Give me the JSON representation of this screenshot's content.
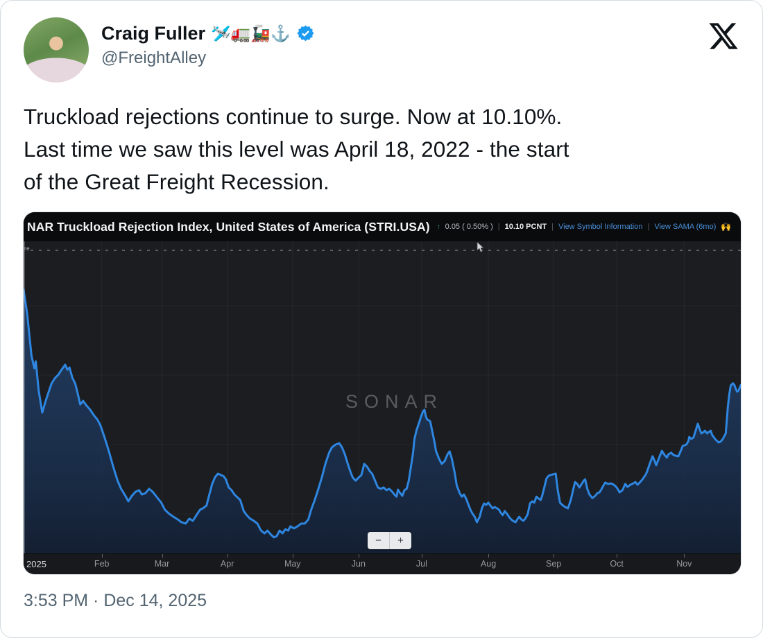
{
  "tweet": {
    "author": {
      "name": "Craig Fuller",
      "emojis": "🛩️🚛🚂⚓",
      "handle": "@FreightAlley"
    },
    "body": "Truckload rejections continue to surge. Now at 10.10%.\nLast time we saw this level was April 18, 2022 - the start\nof the Great Freight Recession.",
    "timestamp": "3:53 PM · Dec 14, 2025"
  },
  "chart": {
    "title": "NAR Truckload Rejection Index, United States of America (STRI.USA)",
    "up_arrow": "↑",
    "change": "0.05 ( 0.50% )",
    "value": "10.10 PCNT",
    "separator": "|",
    "link_symbol_info": "View Symbol Information",
    "link_sama": "View SAMA (6mo)",
    "link_sama_emoji": "🙌",
    "watermark": "SONAR",
    "marker_label": "re",
    "zoom_out": "−",
    "zoom_in": "+",
    "year_label": "2025"
  },
  "colors": {
    "line": "#2e86e0",
    "area_top": "#27528c",
    "area_bottom": "#131f33",
    "link": "#4a90d9",
    "green": "#2ea866",
    "verified": "#1d9bf0",
    "chart_bg": "#1b1d20",
    "titlebar_bg": "#0a0b0d"
  },
  "chart_data": {
    "type": "area",
    "title": "SONAR Truckload Rejection Index, United States of America (STRI.USA)",
    "ylabel": "PCNT",
    "latest_value": 10.1,
    "change_abs": 0.05,
    "change_pct": "0.50%",
    "x_range": "Jan 2025 - mid Dec 2025 (daily, t = fraction of span)",
    "value_range": [
      3.9,
      15.4
    ],
    "marker_value": 15.07,
    "legend": "none",
    "grid": "faint",
    "months": [
      {
        "label": "Feb",
        "t": 0.109
      },
      {
        "label": "Mar",
        "t": 0.193
      },
      {
        "label": "Apr",
        "t": 0.284
      },
      {
        "label": "May",
        "t": 0.375
      },
      {
        "label": "Jun",
        "t": 0.467
      },
      {
        "label": "Jul",
        "t": 0.555
      },
      {
        "label": "Aug",
        "t": 0.648
      },
      {
        "label": "Sep",
        "t": 0.739
      },
      {
        "label": "Oct",
        "t": 0.827
      },
      {
        "label": "Nov",
        "t": 0.921
      }
    ],
    "points": [
      [
        0,
        13.61
      ],
      [
        0.005,
        12.72
      ],
      [
        0.011,
        11.18
      ],
      [
        0.015,
        10.72
      ],
      [
        0.017,
        10.98
      ],
      [
        0.021,
        9.91
      ],
      [
        0.026,
        9.09
      ],
      [
        0.03,
        9.45
      ],
      [
        0.034,
        9.78
      ],
      [
        0.039,
        10.16
      ],
      [
        0.044,
        10.37
      ],
      [
        0.048,
        10.47
      ],
      [
        0.053,
        10.67
      ],
      [
        0.058,
        10.85
      ],
      [
        0.061,
        10.67
      ],
      [
        0.064,
        10.75
      ],
      [
        0.068,
        10.37
      ],
      [
        0.072,
        10.16
      ],
      [
        0.075,
        9.85
      ],
      [
        0.079,
        9.39
      ],
      [
        0.083,
        9.52
      ],
      [
        0.088,
        9.34
      ],
      [
        0.093,
        9.19
      ],
      [
        0.098,
        8.99
      ],
      [
        0.103,
        8.83
      ],
      [
        0.107,
        8.63
      ],
      [
        0.113,
        8.17
      ],
      [
        0.119,
        7.66
      ],
      [
        0.125,
        7.09
      ],
      [
        0.131,
        6.58
      ],
      [
        0.136,
        6.28
      ],
      [
        0.142,
        6.02
      ],
      [
        0.146,
        5.82
      ],
      [
        0.151,
        6.02
      ],
      [
        0.156,
        6.17
      ],
      [
        0.161,
        6.23
      ],
      [
        0.165,
        6.07
      ],
      [
        0.17,
        6.12
      ],
      [
        0.175,
        6.28
      ],
      [
        0.18,
        6.17
      ],
      [
        0.186,
        5.97
      ],
      [
        0.192,
        5.77
      ],
      [
        0.197,
        5.51
      ],
      [
        0.203,
        5.36
      ],
      [
        0.209,
        5.25
      ],
      [
        0.215,
        5.15
      ],
      [
        0.22,
        5.05
      ],
      [
        0.226,
        5.0
      ],
      [
        0.231,
        5.18
      ],
      [
        0.236,
        5.1
      ],
      [
        0.241,
        5.31
      ],
      [
        0.246,
        5.51
      ],
      [
        0.25,
        5.56
      ],
      [
        0.255,
        5.66
      ],
      [
        0.259,
        6.07
      ],
      [
        0.263,
        6.46
      ],
      [
        0.267,
        6.71
      ],
      [
        0.271,
        6.84
      ],
      [
        0.275,
        6.79
      ],
      [
        0.279,
        6.74
      ],
      [
        0.282,
        6.63
      ],
      [
        0.286,
        6.33
      ],
      [
        0.29,
        6.23
      ],
      [
        0.294,
        6.07
      ],
      [
        0.298,
        5.97
      ],
      [
        0.302,
        5.87
      ],
      [
        0.307,
        5.46
      ],
      [
        0.311,
        5.31
      ],
      [
        0.316,
        5.18
      ],
      [
        0.321,
        5.1
      ],
      [
        0.326,
        5.0
      ],
      [
        0.331,
        4.74
      ],
      [
        0.336,
        4.64
      ],
      [
        0.34,
        4.74
      ],
      [
        0.345,
        4.59
      ],
      [
        0.349,
        4.49
      ],
      [
        0.353,
        4.54
      ],
      [
        0.357,
        4.74
      ],
      [
        0.361,
        4.64
      ],
      [
        0.365,
        4.79
      ],
      [
        0.369,
        4.74
      ],
      [
        0.372,
        4.9
      ],
      [
        0.377,
        4.82
      ],
      [
        0.382,
        4.9
      ],
      [
        0.387,
        5.0
      ],
      [
        0.392,
        5.0
      ],
      [
        0.397,
        5.15
      ],
      [
        0.401,
        5.51
      ],
      [
        0.406,
        5.87
      ],
      [
        0.411,
        6.28
      ],
      [
        0.416,
        6.71
      ],
      [
        0.421,
        7.22
      ],
      [
        0.426,
        7.61
      ],
      [
        0.43,
        7.81
      ],
      [
        0.435,
        7.91
      ],
      [
        0.44,
        7.96
      ],
      [
        0.444,
        7.81
      ],
      [
        0.448,
        7.55
      ],
      [
        0.452,
        7.2
      ],
      [
        0.456,
        6.89
      ],
      [
        0.459,
        6.69
      ],
      [
        0.463,
        6.58
      ],
      [
        0.467,
        6.69
      ],
      [
        0.471,
        6.79
      ],
      [
        0.475,
        7.2
      ],
      [
        0.479,
        7.09
      ],
      [
        0.483,
        6.92
      ],
      [
        0.486,
        6.84
      ],
      [
        0.49,
        6.58
      ],
      [
        0.494,
        6.33
      ],
      [
        0.498,
        6.28
      ],
      [
        0.502,
        6.33
      ],
      [
        0.506,
        6.23
      ],
      [
        0.51,
        6.28
      ],
      [
        0.514,
        6.17
      ],
      [
        0.517,
        6.07
      ],
      [
        0.52,
        5.99
      ],
      [
        0.522,
        6.25
      ],
      [
        0.525,
        6.12
      ],
      [
        0.528,
        6.02
      ],
      [
        0.531,
        6.23
      ],
      [
        0.534,
        6.28
      ],
      [
        0.537,
        6.58
      ],
      [
        0.54,
        7.09
      ],
      [
        0.543,
        7.61
      ],
      [
        0.545,
        8.12
      ],
      [
        0.548,
        8.45
      ],
      [
        0.551,
        8.68
      ],
      [
        0.554,
        8.93
      ],
      [
        0.557,
        9.14
      ],
      [
        0.559,
        9.19
      ],
      [
        0.561,
        8.93
      ],
      [
        0.563,
        8.83
      ],
      [
        0.565,
        8.81
      ],
      [
        0.567,
        8.76
      ],
      [
        0.57,
        8.37
      ],
      [
        0.573,
        7.99
      ],
      [
        0.575,
        7.68
      ],
      [
        0.579,
        7.4
      ],
      [
        0.583,
        7.2
      ],
      [
        0.587,
        7.3
      ],
      [
        0.591,
        7.55
      ],
      [
        0.594,
        7.66
      ],
      [
        0.597,
        7.4
      ],
      [
        0.601,
        6.89
      ],
      [
        0.604,
        6.4
      ],
      [
        0.608,
        6.12
      ],
      [
        0.611,
        5.99
      ],
      [
        0.614,
        6.07
      ],
      [
        0.617,
        5.92
      ],
      [
        0.62,
        5.71
      ],
      [
        0.623,
        5.51
      ],
      [
        0.626,
        5.36
      ],
      [
        0.629,
        5.25
      ],
      [
        0.632,
        5.05
      ],
      [
        0.636,
        5.25
      ],
      [
        0.639,
        5.56
      ],
      [
        0.642,
        5.74
      ],
      [
        0.645,
        5.69
      ],
      [
        0.648,
        5.77
      ],
      [
        0.651,
        5.66
      ],
      [
        0.654,
        5.56
      ],
      [
        0.657,
        5.61
      ],
      [
        0.66,
        5.56
      ],
      [
        0.663,
        5.51
      ],
      [
        0.665,
        5.41
      ],
      [
        0.668,
        5.31
      ],
      [
        0.671,
        5.46
      ],
      [
        0.674,
        5.36
      ],
      [
        0.678,
        5.2
      ],
      [
        0.682,
        5.1
      ],
      [
        0.686,
        5.05
      ],
      [
        0.689,
        5.18
      ],
      [
        0.691,
        5.25
      ],
      [
        0.694,
        5.15
      ],
      [
        0.697,
        5.1
      ],
      [
        0.7,
        5.2
      ],
      [
        0.703,
        5.36
      ],
      [
        0.706,
        5.74
      ],
      [
        0.709,
        5.82
      ],
      [
        0.712,
        5.77
      ],
      [
        0.715,
        5.99
      ],
      [
        0.718,
        5.92
      ],
      [
        0.721,
        5.87
      ],
      [
        0.723,
        6.02
      ],
      [
        0.726,
        6.33
      ],
      [
        0.729,
        6.66
      ],
      [
        0.732,
        6.76
      ],
      [
        0.735,
        6.79
      ],
      [
        0.738,
        6.81
      ],
      [
        0.742,
        6.84
      ],
      [
        0.745,
        6.2
      ],
      [
        0.748,
        5.77
      ],
      [
        0.751,
        5.69
      ],
      [
        0.755,
        5.61
      ],
      [
        0.759,
        5.56
      ],
      [
        0.763,
        5.87
      ],
      [
        0.767,
        6.33
      ],
      [
        0.769,
        6.53
      ],
      [
        0.772,
        6.46
      ],
      [
        0.775,
        6.33
      ],
      [
        0.778,
        6.46
      ],
      [
        0.781,
        6.58
      ],
      [
        0.783,
        6.63
      ],
      [
        0.786,
        6.28
      ],
      [
        0.789,
        6.07
      ],
      [
        0.793,
        5.94
      ],
      [
        0.797,
        6.02
      ],
      [
        0.8,
        6.12
      ],
      [
        0.803,
        6.15
      ],
      [
        0.806,
        6.28
      ],
      [
        0.808,
        6.38
      ],
      [
        0.811,
        6.51
      ],
      [
        0.815,
        6.46
      ],
      [
        0.819,
        6.48
      ],
      [
        0.823,
        6.43
      ],
      [
        0.827,
        6.33
      ],
      [
        0.831,
        6.15
      ],
      [
        0.835,
        6.23
      ],
      [
        0.839,
        6.46
      ],
      [
        0.842,
        6.35
      ],
      [
        0.846,
        6.43
      ],
      [
        0.85,
        6.48
      ],
      [
        0.853,
        6.53
      ],
      [
        0.856,
        6.43
      ],
      [
        0.859,
        6.51
      ],
      [
        0.863,
        6.63
      ],
      [
        0.867,
        6.79
      ],
      [
        0.869,
        6.89
      ],
      [
        0.873,
        7.2
      ],
      [
        0.877,
        7.48
      ],
      [
        0.88,
        7.3
      ],
      [
        0.882,
        7.15
      ],
      [
        0.885,
        7.35
      ],
      [
        0.888,
        7.55
      ],
      [
        0.89,
        7.68
      ],
      [
        0.893,
        7.55
      ],
      [
        0.897,
        7.43
      ],
      [
        0.899,
        7.55
      ],
      [
        0.903,
        7.61
      ],
      [
        0.906,
        7.53
      ],
      [
        0.909,
        7.5
      ],
      [
        0.913,
        7.48
      ],
      [
        0.916,
        7.66
      ],
      [
        0.919,
        7.86
      ],
      [
        0.922,
        7.89
      ],
      [
        0.924,
        7.91
      ],
      [
        0.927,
        8.04
      ],
      [
        0.928,
        8.19
      ],
      [
        0.931,
        8.12
      ],
      [
        0.934,
        8.17
      ],
      [
        0.937,
        8.42
      ],
      [
        0.94,
        8.68
      ],
      [
        0.943,
        8.45
      ],
      [
        0.945,
        8.32
      ],
      [
        0.948,
        8.37
      ],
      [
        0.95,
        8.42
      ],
      [
        0.953,
        8.32
      ],
      [
        0.955,
        8.37
      ],
      [
        0.958,
        8.42
      ],
      [
        0.96,
        8.27
      ],
      [
        0.964,
        8.12
      ],
      [
        0.967,
        8.04
      ],
      [
        0.969,
        7.99
      ],
      [
        0.972,
        8.02
      ],
      [
        0.975,
        8.12
      ],
      [
        0.979,
        8.32
      ],
      [
        0.982,
        9.32
      ],
      [
        0.984,
        9.78
      ],
      [
        0.986,
        10.09
      ],
      [
        0.989,
        10.17
      ],
      [
        0.991,
        10.11
      ],
      [
        0.993,
        9.96
      ],
      [
        0.995,
        9.86
      ],
      [
        0.997,
        9.91
      ],
      [
        1,
        10.1
      ]
    ]
  }
}
